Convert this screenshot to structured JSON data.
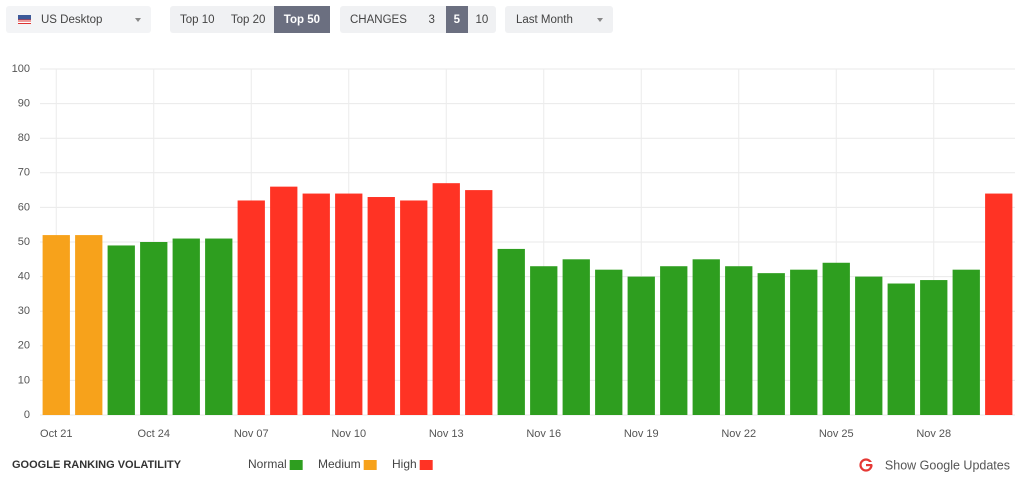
{
  "controls": {
    "device": "US Desktop",
    "top": [
      "Top 10",
      "Top 20",
      "Top 50"
    ],
    "top_selected": 2,
    "changes_label": "CHANGES",
    "changes": [
      "3",
      "5",
      "10"
    ],
    "changes_selected": 1,
    "period": "Last Month"
  },
  "chart_data": {
    "type": "bar",
    "title": "GOOGLE RANKING VOLATILITY",
    "categories": [
      "Oct 21",
      null,
      null,
      "Oct 24",
      null,
      null,
      "Nov 07",
      null,
      null,
      "Nov 10",
      null,
      null,
      "Nov 13",
      null,
      null,
      "Nov 16",
      null,
      null,
      "Nov 19",
      null,
      null,
      "Nov 22",
      null,
      null,
      "Nov 25",
      null,
      null,
      "Nov 28",
      null,
      null
    ],
    "values": [
      52,
      52,
      49,
      50,
      51,
      51,
      62,
      66,
      64,
      64,
      63,
      62,
      67,
      65,
      48,
      43,
      45,
      42,
      40,
      43,
      45,
      43,
      41,
      42,
      44,
      40,
      38,
      39,
      42,
      64
    ],
    "colors": [
      "#f7a21b",
      "#f7a21b",
      "#2e9e1f",
      "#2e9e1f",
      "#2e9e1f",
      "#2e9e1f",
      "#ff3324",
      "#ff3324",
      "#ff3324",
      "#ff3324",
      "#ff3324",
      "#ff3324",
      "#ff3324",
      "#ff3324",
      "#2e9e1f",
      "#2e9e1f",
      "#2e9e1f",
      "#2e9e1f",
      "#2e9e1f",
      "#2e9e1f",
      "#2e9e1f",
      "#2e9e1f",
      "#2e9e1f",
      "#2e9e1f",
      "#2e9e1f",
      "#2e9e1f",
      "#2e9e1f",
      "#2e9e1f",
      "#2e9e1f",
      "#ff3324"
    ],
    "ylim": [
      0,
      100
    ],
    "yticks": [
      0,
      10,
      20,
      30,
      40,
      50,
      60,
      70,
      80,
      90,
      100
    ],
    "grid": true,
    "legend": [
      {
        "name": "Normal",
        "color": "#2e9e1f"
      },
      {
        "name": "Medium",
        "color": "#f7a21b"
      },
      {
        "name": "High",
        "color": "#ff3324"
      }
    ]
  },
  "footer": {
    "link": "Show Google Updates"
  }
}
